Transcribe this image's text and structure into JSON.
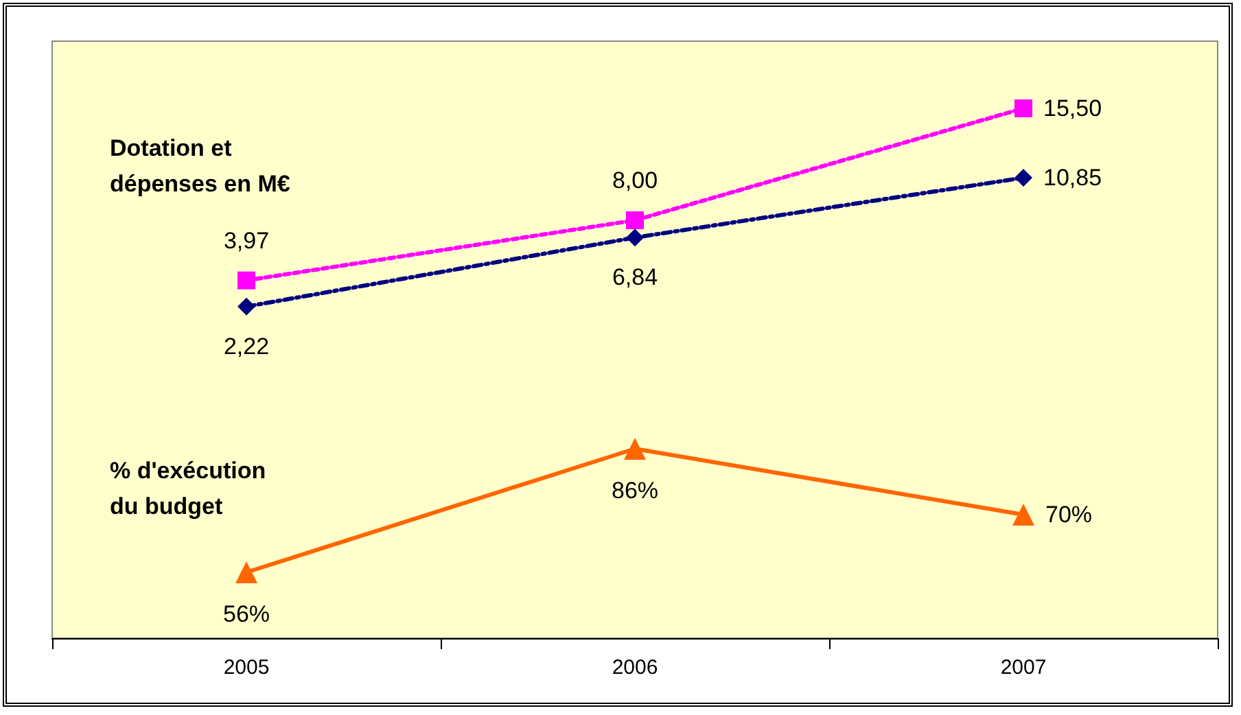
{
  "chart_data": {
    "type": "line",
    "categories": [
      "2005",
      "2006",
      "2007"
    ],
    "tick_labels": "x",
    "grid": false,
    "ylim": [
      -20,
      20
    ],
    "y2lim": [
      40,
      185
    ],
    "series": [
      {
        "color": "#ff00ff",
        "marker": "square",
        "line_style": "dotted",
        "values": [
          3.97,
          8.0,
          15.5
        ],
        "value_labels": [
          "3,97",
          "8,00",
          "15,50"
        ]
      },
      {
        "color": "#000080",
        "marker": "diamond",
        "line_style": "dashed",
        "values": [
          2.22,
          6.84,
          10.85
        ],
        "value_labels": [
          "2,22",
          "6,84",
          "10,85"
        ]
      },
      {
        "color": "#ff6600",
        "marker": "triangle",
        "line_style": "solid",
        "axis": "y2",
        "values": [
          56,
          86,
          70
        ],
        "value_labels": [
          "56%",
          "86%",
          "70%"
        ]
      }
    ],
    "annotations": [
      "Dotation et\ndépenses en M€",
      "% d'exécution\ndu budget"
    ]
  }
}
